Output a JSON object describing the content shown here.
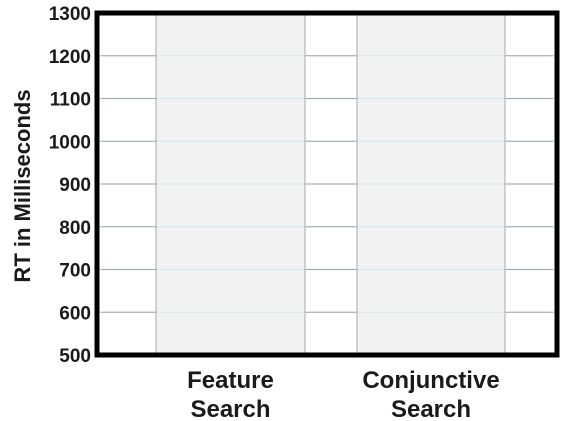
{
  "chart_data": {
    "type": "bar",
    "title": "",
    "xlabel": "",
    "ylabel": "RT in Milliseconds",
    "ylim": [
      500,
      1300
    ],
    "yticks": [
      500,
      600,
      700,
      800,
      900,
      1000,
      1100,
      1200,
      1300
    ],
    "categories": [
      [
        "Feature",
        "Search"
      ],
      [
        "Conjunctive",
        "Search"
      ]
    ],
    "values": [
      null,
      null
    ],
    "grid": true,
    "legend": "none"
  },
  "colors": {
    "axis": "#000000",
    "column_fill": "#f2f2f2",
    "gridline_light": "#d5eef4",
    "gridline_grey": "#a8a8a8",
    "text": "#1a1a1a",
    "background": "#ffffff"
  }
}
